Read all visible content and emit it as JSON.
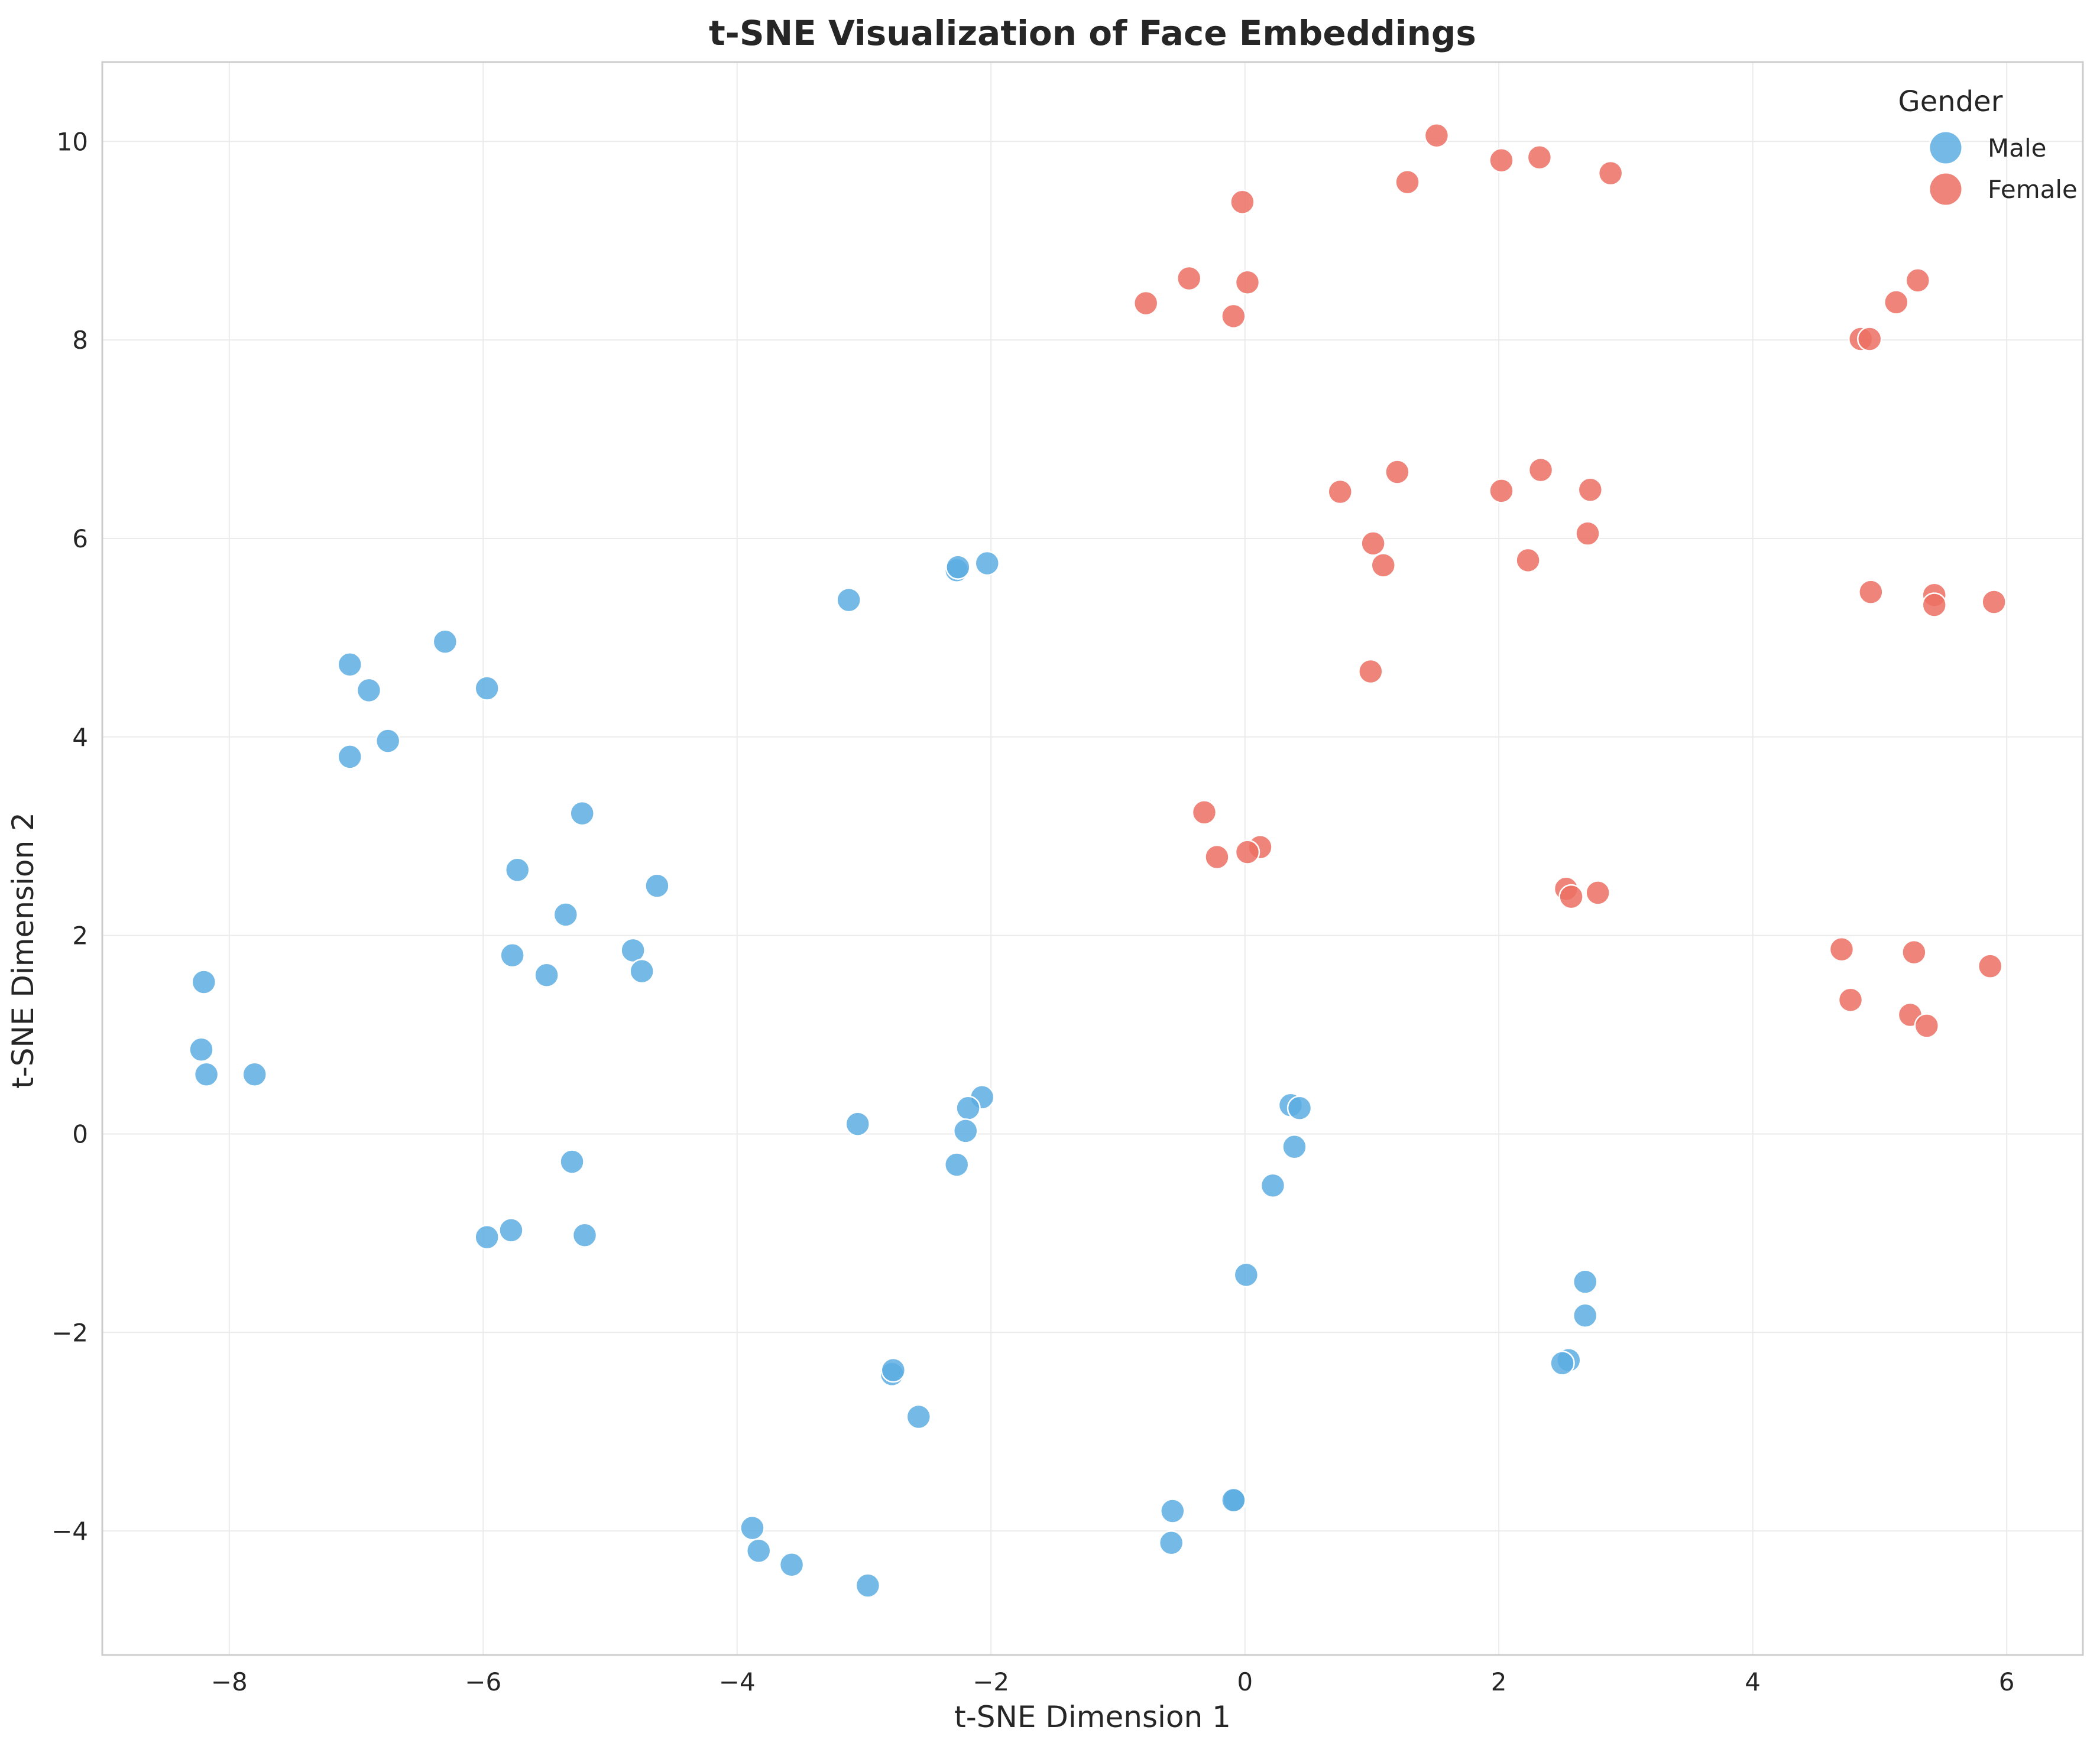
{
  "chart_data": {
    "type": "scatter",
    "title": "t-SNE Visualization of Face Embeddings",
    "xlabel": "t-SNE Dimension 1",
    "ylabel": "t-SNE Dimension 2",
    "xlim": [
      -9,
      6.6
    ],
    "ylim": [
      -5.25,
      10.8
    ],
    "xticks": [
      -8,
      -6,
      -4,
      -2,
      0,
      2,
      4,
      6
    ],
    "yticks": [
      -4,
      -2,
      0,
      2,
      4,
      6,
      8,
      10
    ],
    "grid": true,
    "legend": {
      "title": "Gender",
      "placement": "top-right"
    },
    "series": [
      {
        "name": "Male",
        "color": "#5DADE2",
        "points": [
          [
            -8.2,
            1.53
          ],
          [
            -8.22,
            0.85
          ],
          [
            -8.18,
            0.6
          ],
          [
            -7.8,
            0.6
          ],
          [
            -7.05,
            4.73
          ],
          [
            -6.9,
            4.47
          ],
          [
            -6.75,
            3.96
          ],
          [
            -7.05,
            3.8
          ],
          [
            -6.3,
            4.96
          ],
          [
            -5.97,
            4.49
          ],
          [
            -5.22,
            3.23
          ],
          [
            -5.73,
            2.66
          ],
          [
            -5.35,
            2.21
          ],
          [
            -5.77,
            1.8
          ],
          [
            -5.5,
            1.6
          ],
          [
            -4.63,
            2.5
          ],
          [
            -4.82,
            1.85
          ],
          [
            -4.75,
            1.64
          ],
          [
            -5.3,
            -0.28
          ],
          [
            -5.97,
            -1.04
          ],
          [
            -5.78,
            -0.97
          ],
          [
            -5.2,
            -1.02
          ],
          [
            -3.12,
            5.38
          ],
          [
            -2.27,
            5.68
          ],
          [
            -2.26,
            5.71
          ],
          [
            -2.03,
            5.75
          ],
          [
            -3.05,
            0.1
          ],
          [
            -2.07,
            0.37
          ],
          [
            -2.18,
            0.26
          ],
          [
            -2.2,
            0.03
          ],
          [
            -2.27,
            -0.31
          ],
          [
            -2.78,
            -2.42
          ],
          [
            -2.77,
            -2.38
          ],
          [
            -2.57,
            -2.85
          ],
          [
            -3.88,
            -3.97
          ],
          [
            -3.83,
            -4.2
          ],
          [
            -3.57,
            -4.34
          ],
          [
            -2.97,
            -4.55
          ],
          [
            -0.57,
            -3.8
          ],
          [
            -0.58,
            -4.12
          ],
          [
            -0.08,
            -3.69
          ],
          [
            -0.09,
            -3.69
          ],
          [
            0.36,
            0.29
          ],
          [
            0.43,
            0.26
          ],
          [
            0.39,
            -0.13
          ],
          [
            0.22,
            -0.52
          ],
          [
            0.01,
            -1.42
          ],
          [
            2.68,
            -1.49
          ],
          [
            2.68,
            -1.83
          ],
          [
            2.55,
            -2.28
          ],
          [
            2.5,
            -2.31
          ]
        ]
      },
      {
        "name": "Female",
        "color": "#EC7063",
        "points": [
          [
            1.51,
            10.06
          ],
          [
            2.02,
            9.81
          ],
          [
            2.32,
            9.84
          ],
          [
            2.88,
            9.68
          ],
          [
            1.28,
            9.59
          ],
          [
            -0.02,
            9.39
          ],
          [
            -0.44,
            8.62
          ],
          [
            0.02,
            8.58
          ],
          [
            -0.78,
            8.37
          ],
          [
            -0.09,
            8.24
          ],
          [
            5.3,
            8.6
          ],
          [
            5.13,
            8.38
          ],
          [
            4.85,
            8.01
          ],
          [
            4.92,
            8.01
          ],
          [
            0.75,
            6.47
          ],
          [
            1.2,
            6.67
          ],
          [
            2.02,
            6.48
          ],
          [
            2.33,
            6.69
          ],
          [
            2.72,
            6.49
          ],
          [
            2.7,
            6.05
          ],
          [
            1.01,
            5.95
          ],
          [
            1.09,
            5.73
          ],
          [
            2.23,
            5.78
          ],
          [
            0.99,
            4.66
          ],
          [
            4.93,
            5.46
          ],
          [
            5.43,
            5.43
          ],
          [
            5.43,
            5.33
          ],
          [
            5.9,
            5.36
          ],
          [
            -0.32,
            3.24
          ],
          [
            -0.22,
            2.79
          ],
          [
            0.12,
            2.89
          ],
          [
            0.02,
            2.84
          ],
          [
            2.53,
            2.47
          ],
          [
            2.57,
            2.39
          ],
          [
            2.78,
            2.43
          ],
          [
            4.7,
            1.86
          ],
          [
            5.27,
            1.83
          ],
          [
            5.87,
            1.69
          ],
          [
            4.77,
            1.35
          ],
          [
            5.24,
            1.2
          ],
          [
            5.37,
            1.09
          ]
        ]
      }
    ]
  }
}
